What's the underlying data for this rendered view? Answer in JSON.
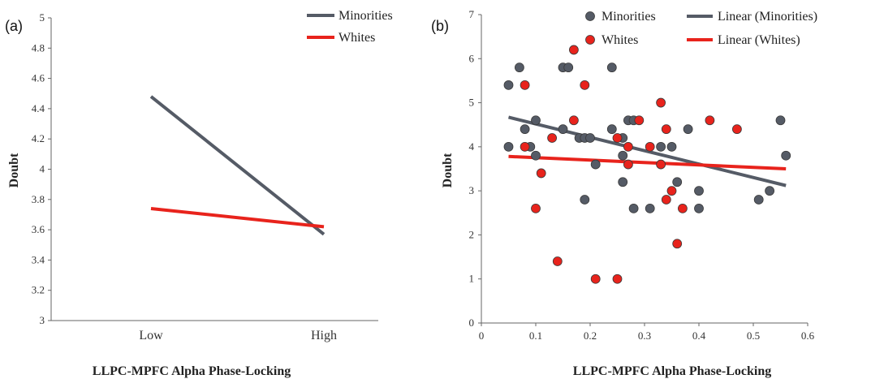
{
  "chart_data": [
    {
      "type": "line",
      "panel_label": "(a)",
      "xlabel": "LLPC-MPFC  Alpha  Phase-Locking",
      "ylabel": "Doubt",
      "categories": [
        "Low",
        "High"
      ],
      "ylim": [
        3,
        5
      ],
      "yticks": [
        "3",
        "3.2",
        "3.4",
        "3.6",
        "3.8",
        "4",
        "4.2",
        "4.4",
        "4.6",
        "4.8",
        "5"
      ],
      "legend_position": "top-right",
      "grid": false,
      "series": [
        {
          "name": "Minorities",
          "values": [
            4.48,
            3.57
          ],
          "color": "#555b66"
        },
        {
          "name": "Whites",
          "values": [
            3.74,
            3.62
          ],
          "color": "#e8231c"
        }
      ]
    },
    {
      "type": "scatter",
      "panel_label": "(b)",
      "xlabel": "LLPC-MPFC  Alpha  Phase-Locking",
      "ylabel": "Doubt",
      "xlim": [
        0,
        0.6
      ],
      "ylim": [
        0,
        7
      ],
      "xticks": [
        "0",
        "0.1",
        "0.2",
        "0.3",
        "0.4",
        "0.5",
        "0.6"
      ],
      "yticks": [
        "0",
        "1",
        "2",
        "3",
        "4",
        "5",
        "6",
        "7"
      ],
      "legend_position": "top-right",
      "grid": false,
      "series": [
        {
          "name": "Minorities",
          "color": "#555b66",
          "points": [
            [
              0.05,
              5.4
            ],
            [
              0.05,
              4.0
            ],
            [
              0.07,
              5.8
            ],
            [
              0.08,
              4.4
            ],
            [
              0.09,
              4.0
            ],
            [
              0.1,
              4.6
            ],
            [
              0.1,
              3.8
            ],
            [
              0.15,
              5.8
            ],
            [
              0.16,
              5.8
            ],
            [
              0.15,
              4.4
            ],
            [
              0.18,
              4.2
            ],
            [
              0.19,
              4.2
            ],
            [
              0.2,
              4.2
            ],
            [
              0.19,
              2.8
            ],
            [
              0.21,
              3.6
            ],
            [
              0.24,
              5.8
            ],
            [
              0.24,
              4.4
            ],
            [
              0.26,
              4.2
            ],
            [
              0.26,
              3.8
            ],
            [
              0.26,
              3.2
            ],
            [
              0.27,
              4.6
            ],
            [
              0.28,
              4.6
            ],
            [
              0.28,
              2.6
            ],
            [
              0.31,
              2.6
            ],
            [
              0.33,
              4.0
            ],
            [
              0.35,
              4.0
            ],
            [
              0.36,
              3.2
            ],
            [
              0.38,
              4.4
            ],
            [
              0.4,
              3.0
            ],
            [
              0.4,
              2.6
            ],
            [
              0.51,
              2.8
            ],
            [
              0.53,
              3.0
            ],
            [
              0.55,
              4.6
            ],
            [
              0.56,
              3.8
            ]
          ]
        },
        {
          "name": "Whites",
          "color": "#e8231c",
          "points": [
            [
              0.08,
              5.4
            ],
            [
              0.08,
              4.0
            ],
            [
              0.1,
              2.6
            ],
            [
              0.11,
              3.4
            ],
            [
              0.13,
              4.2
            ],
            [
              0.14,
              1.4
            ],
            [
              0.17,
              6.2
            ],
            [
              0.17,
              4.6
            ],
            [
              0.19,
              5.4
            ],
            [
              0.21,
              1.0
            ],
            [
              0.25,
              4.2
            ],
            [
              0.25,
              1.0
            ],
            [
              0.27,
              4.0
            ],
            [
              0.27,
              3.6
            ],
            [
              0.29,
              4.6
            ],
            [
              0.31,
              4.0
            ],
            [
              0.33,
              5.0
            ],
            [
              0.33,
              3.6
            ],
            [
              0.34,
              4.4
            ],
            [
              0.34,
              2.8
            ],
            [
              0.35,
              3.0
            ],
            [
              0.36,
              1.8
            ],
            [
              0.37,
              2.6
            ],
            [
              0.42,
              4.6
            ],
            [
              0.47,
              4.4
            ]
          ]
        },
        {
          "name": "Linear (Minorities)",
          "type": "trendline",
          "color": "#555b66",
          "points": [
            [
              0.05,
              4.67
            ],
            [
              0.56,
              3.12
            ]
          ]
        },
        {
          "name": "Linear (Whites)",
          "type": "trendline",
          "color": "#e8231c",
          "points": [
            [
              0.05,
              3.78
            ],
            [
              0.56,
              3.5
            ]
          ]
        }
      ]
    }
  ]
}
